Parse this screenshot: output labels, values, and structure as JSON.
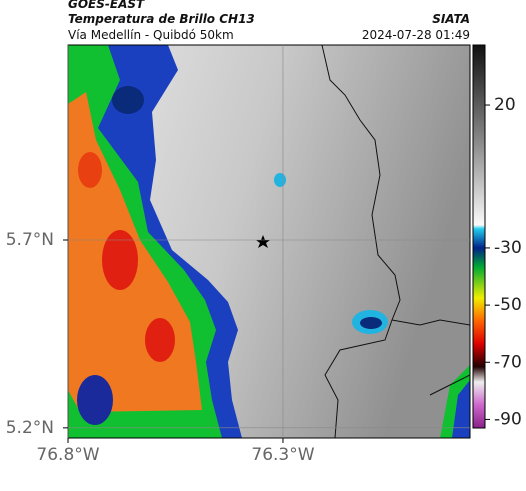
{
  "header": {
    "title": "GOES-EAST",
    "subtitle": "Temperatura de Brillo CH13",
    "region": "Vía Medellín - Quibdó 50km",
    "source": "SIATA",
    "datetime": "2024-07-28 01:49"
  },
  "map": {
    "xlim": [
      -76.8,
      -75.865
    ],
    "ylim": [
      5.173,
      6.219
    ],
    "xticks": [
      {
        "value": -76.8,
        "label": "76.8°W"
      },
      {
        "value": -76.3,
        "label": "76.3°W"
      }
    ],
    "yticks": [
      {
        "value": 5.7,
        "label": "5.7°N"
      },
      {
        "value": 5.2,
        "label": "5.2°N"
      }
    ],
    "grid": true
  },
  "colorbar": {
    "lim": [
      -93,
      41
    ],
    "ticks": [
      20,
      -30,
      -50,
      -70,
      -90
    ]
  }
}
